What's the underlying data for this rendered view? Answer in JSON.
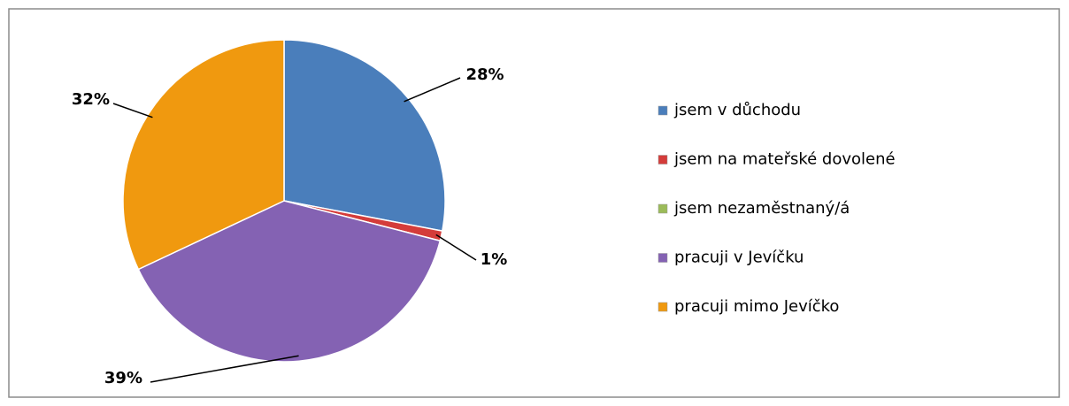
{
  "chart_data": {
    "type": "pie",
    "categories": [
      "jsem v důchodu",
      "jsem na mateřské dovolené",
      "jsem nezaměstnaný/á",
      "pracuji v Jevíčku",
      "pracuji mimo Jevíčko"
    ],
    "values": [
      28,
      1,
      0,
      39,
      32
    ],
    "value_labels": [
      "28%",
      "1%",
      null,
      "39%",
      "32%"
    ],
    "colors": [
      "#4a7ebb",
      "#d43c3a",
      "#9bbb59",
      "#8462b3",
      "#f0990f"
    ],
    "legend": "right"
  }
}
